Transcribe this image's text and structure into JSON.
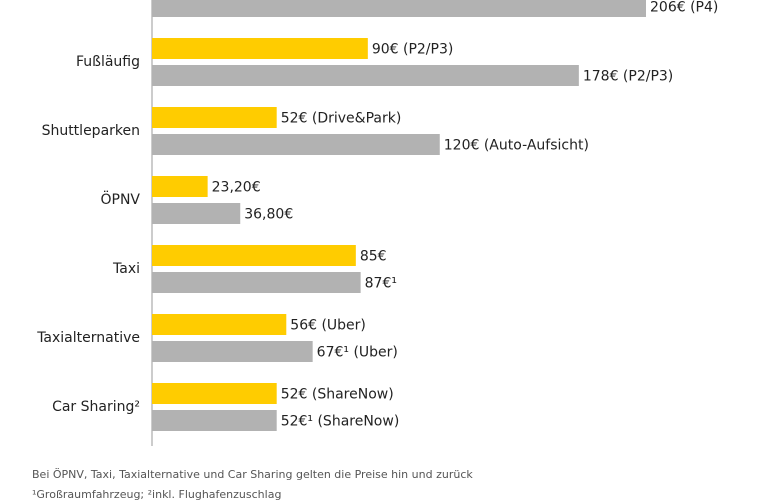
{
  "chart_data": {
    "type": "bar",
    "orientation": "horizontal",
    "categories": [
      null,
      "Fußläufig",
      "Shuttleparken",
      "ÖPNV",
      "Taxi",
      "Taxialternative",
      "Car Sharing²"
    ],
    "series": [
      {
        "color": "#ffcc00",
        "values": [
          null,
          90,
          52,
          23.2,
          85,
          56,
          52
        ],
        "value_labels": [
          null,
          "90€ (P2/P3)",
          "52€ (Drive&Park)",
          "23,20€",
          "85€",
          "56€ (Uber)",
          "52€ (ShareNow)"
        ]
      },
      {
        "color": "#b2b2b2",
        "values": [
          206,
          178,
          120,
          36.8,
          87,
          67,
          52
        ],
        "value_labels": [
          "206€ (P4)",
          "178€ (P2/P3)",
          "120€ (Auto-Aufsicht)",
          "36,80€",
          "87€¹",
          "67€¹ (Uber)",
          "52€¹ (ShareNow)"
        ]
      }
    ],
    "notes": [
      "Bei ÖPNV, Taxi, Taxialternative und Car Sharing gelten die Preise hin und zurück",
      "¹Großraumfahrzeug; ²inkl. Flughafenzuschlag"
    ]
  }
}
